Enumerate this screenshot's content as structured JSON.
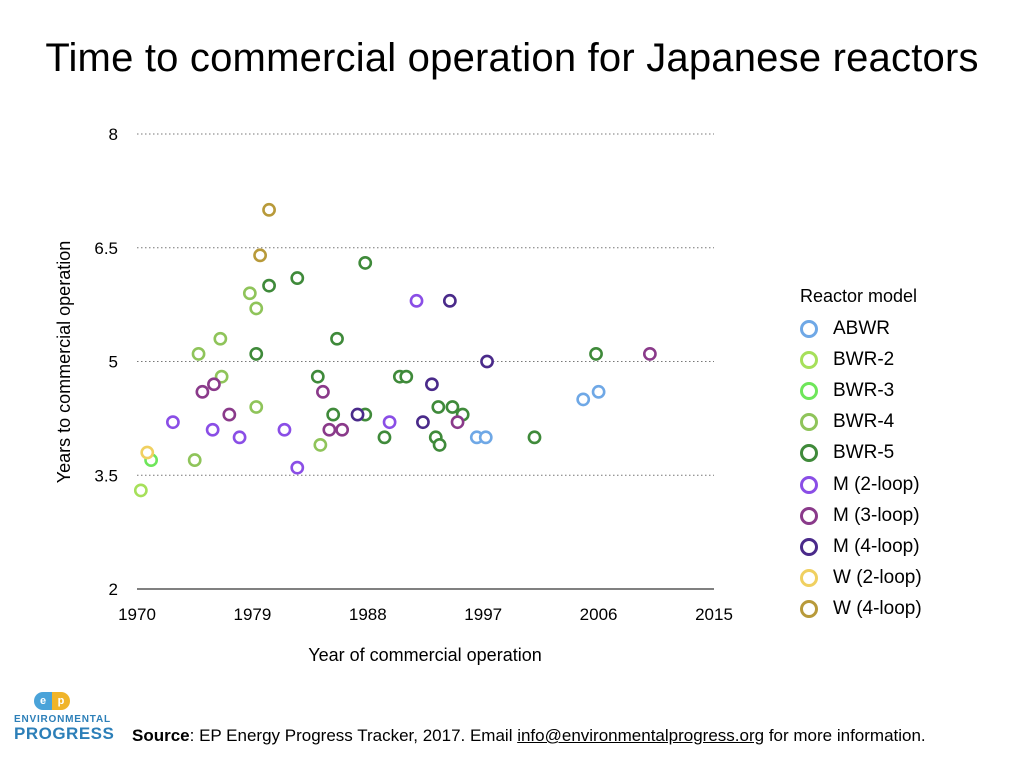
{
  "footer": {
    "source_label": "Source",
    "text_before": ": EP Energy Progress Tracker, 2017. Email ",
    "email": "info@environmentalprogress.org",
    "text_after": " for more information."
  },
  "logo": {
    "mark_left": "e",
    "mark_right": "p",
    "line1": "ENVIRONMENTAL",
    "line2": "PROGRESS",
    "colors": {
      "left": "#4aa3d9",
      "right": "#f0b429",
      "text": "#2c7fb8"
    }
  },
  "chart_data": {
    "type": "scatter",
    "title": "Time to commercial operation for Japanese reactors",
    "xlabel": "Year of commercial operation",
    "ylabel": "Years to commercial operation",
    "xlim": [
      1970,
      2015
    ],
    "ylim": [
      2,
      8
    ],
    "xticks": [
      "1970",
      "1979",
      "1988",
      "1997",
      "2006",
      "2015"
    ],
    "yticks": [
      "2",
      "3.5",
      "5",
      "6.5",
      "8"
    ],
    "grid": "horizontal dotted",
    "legend_title": "Reactor model",
    "legend_position": "right",
    "series": [
      {
        "name": "ABWR",
        "color": "#6fa8e6",
        "points": [
          [
            1996.5,
            4.0
          ],
          [
            1997.2,
            4.0
          ],
          [
            2004.8,
            4.5
          ],
          [
            2006.0,
            4.6
          ]
        ]
      },
      {
        "name": "BWR-2",
        "color": "#a6e05a",
        "points": [
          [
            1970.3,
            3.3
          ]
        ]
      },
      {
        "name": "BWR-3",
        "color": "#6ee65a",
        "points": [
          [
            1971.1,
            3.7
          ]
        ]
      },
      {
        "name": "BWR-4",
        "color": "#8fc45a",
        "points": [
          [
            1974.5,
            3.7
          ],
          [
            1974.8,
            5.1
          ],
          [
            1976.6,
            4.8
          ],
          [
            1976.5,
            5.3
          ],
          [
            1978.8,
            5.9
          ],
          [
            1979.3,
            5.7
          ],
          [
            1979.3,
            4.4
          ],
          [
            1984.3,
            3.9
          ]
        ]
      },
      {
        "name": "BWR-5",
        "color": "#3f8a3a",
        "points": [
          [
            1979.3,
            5.1
          ],
          [
            1980.3,
            6.0
          ],
          [
            1982.5,
            6.1
          ],
          [
            1984.1,
            4.8
          ],
          [
            1985.3,
            4.3
          ],
          [
            1985.6,
            5.3
          ],
          [
            1987.8,
            6.3
          ],
          [
            1987.8,
            4.3
          ],
          [
            1989.3,
            4.0
          ],
          [
            1990.5,
            4.8
          ],
          [
            1991.0,
            4.8
          ],
          [
            1993.5,
            4.4
          ],
          [
            1993.3,
            4.0
          ],
          [
            1993.6,
            3.9
          ],
          [
            1994.6,
            4.4
          ],
          [
            1995.4,
            4.3
          ],
          [
            2001.0,
            4.0
          ],
          [
            2005.8,
            5.1
          ]
        ]
      },
      {
        "name": "M (2-loop)",
        "color": "#8a4ee6",
        "points": [
          [
            1972.8,
            4.2
          ],
          [
            1975.9,
            4.1
          ],
          [
            1978.0,
            4.0
          ],
          [
            1981.5,
            4.1
          ],
          [
            1982.5,
            3.6
          ],
          [
            1989.7,
            4.2
          ],
          [
            1991.8,
            5.8
          ]
        ]
      },
      {
        "name": "M (3-loop)",
        "color": "#8a3a8a",
        "points": [
          [
            1975.1,
            4.6
          ],
          [
            1976.0,
            4.7
          ],
          [
            1977.2,
            4.3
          ],
          [
            1984.5,
            4.6
          ],
          [
            1985.0,
            4.1
          ],
          [
            1986.0,
            4.1
          ],
          [
            1995.0,
            4.2
          ],
          [
            2010.0,
            5.1
          ]
        ]
      },
      {
        "name": "M (4-loop)",
        "color": "#4a2a8a",
        "points": [
          [
            1987.2,
            4.3
          ],
          [
            1992.3,
            4.2
          ],
          [
            1993.0,
            4.7
          ],
          [
            1994.4,
            5.8
          ],
          [
            1997.3,
            5.0
          ]
        ]
      },
      {
        "name": "W (2-loop)",
        "color": "#f0d060",
        "points": [
          [
            1970.8,
            3.8
          ]
        ]
      },
      {
        "name": "W (4-loop)",
        "color": "#b89a3a",
        "points": [
          [
            1979.6,
            6.4
          ],
          [
            1980.3,
            7.0
          ]
        ]
      }
    ]
  }
}
